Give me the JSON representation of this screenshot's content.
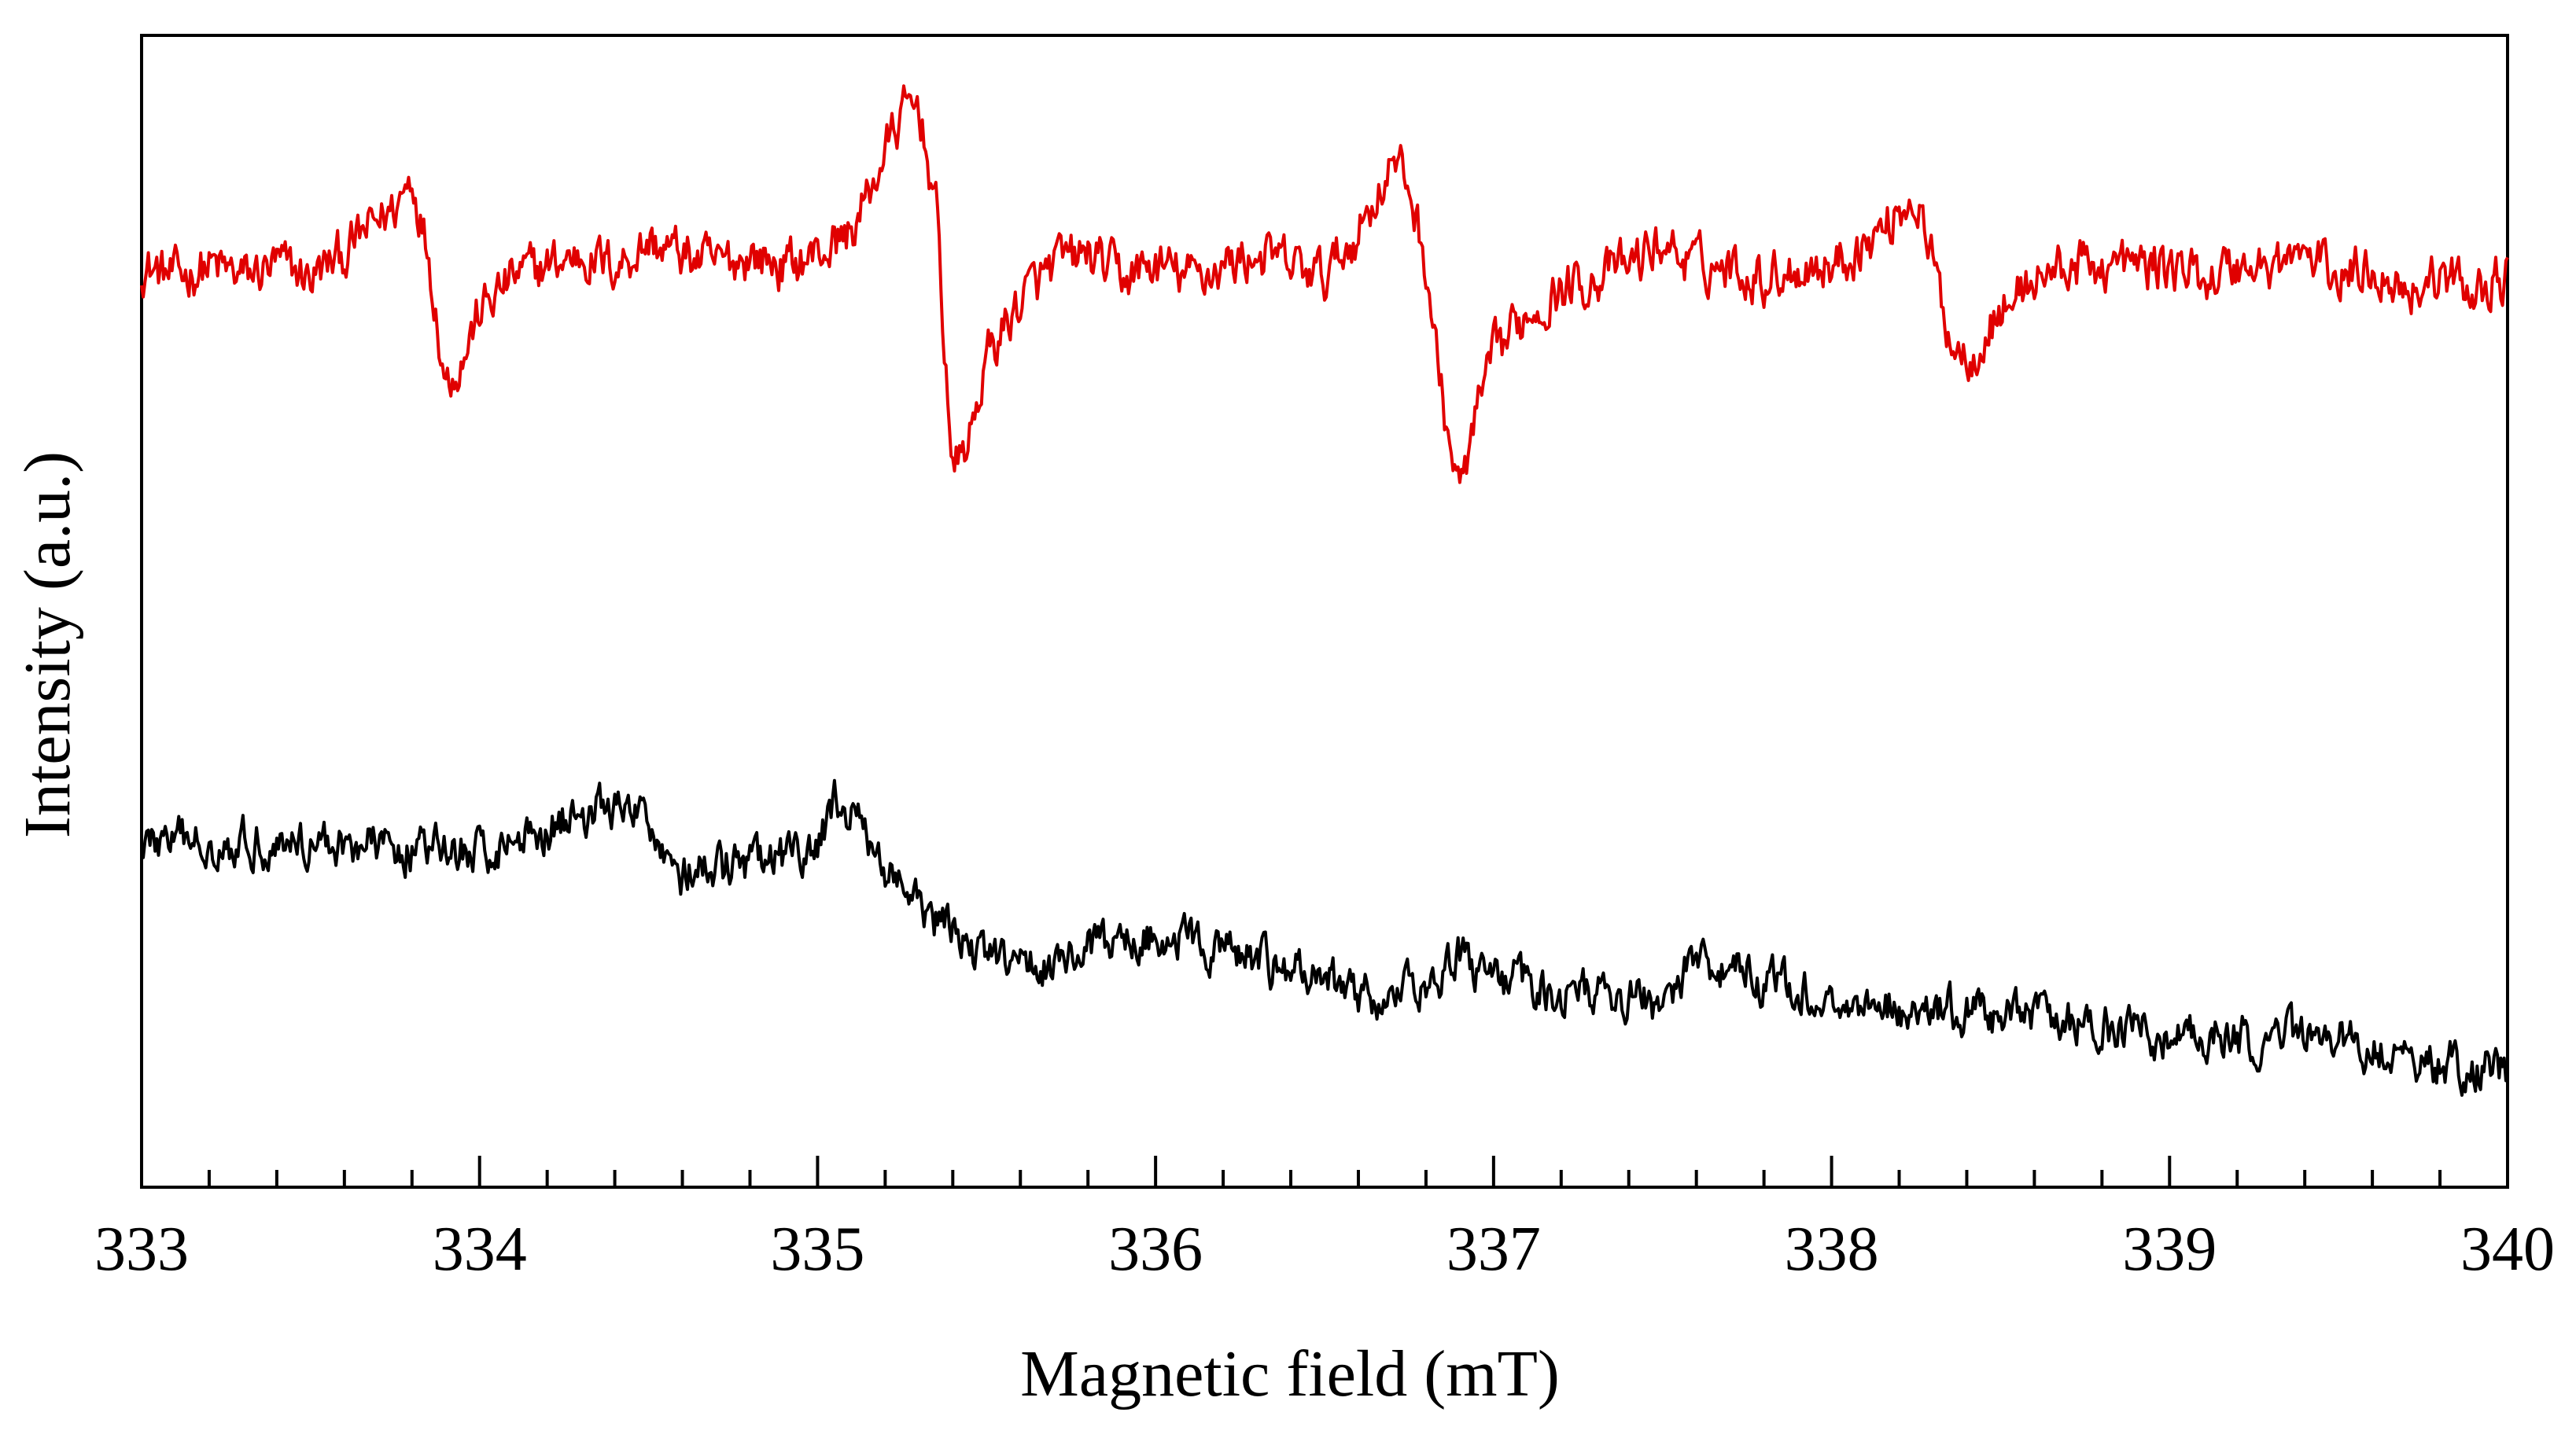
{
  "chart_data": {
    "type": "line",
    "title": "",
    "xlabel": "Magnetic field (mT)",
    "ylabel": "Intensity (a.u.)",
    "xlim": [
      333,
      340
    ],
    "ylim": [
      0,
      1
    ],
    "x_major_ticks": [
      333,
      334,
      335,
      336,
      337,
      338,
      339,
      340
    ],
    "x_tick_labels": [
      "333",
      "334",
      "335",
      "336",
      "337",
      "338",
      "339",
      "340"
    ],
    "x_minor_step": 0.2,
    "y_ticks_shown": false,
    "grid": false,
    "legend": "none",
    "series": [
      {
        "name": "upper spectrum (red)",
        "color": "#e00000",
        "x": [
          333.0,
          333.1,
          333.2,
          333.3,
          333.4,
          333.5,
          333.6,
          333.7,
          333.75,
          333.8,
          333.85,
          333.9,
          333.95,
          334.0,
          334.1,
          334.2,
          334.3,
          334.4,
          334.5,
          334.6,
          334.7,
          334.8,
          334.9,
          335.0,
          335.1,
          335.15,
          335.2,
          335.25,
          335.3,
          335.35,
          335.4,
          335.45,
          335.5,
          335.6,
          335.7,
          335.8,
          335.9,
          336.0,
          336.1,
          336.2,
          336.3,
          336.4,
          336.5,
          336.6,
          336.65,
          336.7,
          336.75,
          336.8,
          336.85,
          336.9,
          336.95,
          337.0,
          337.1,
          337.2,
          337.3,
          337.4,
          337.5,
          337.6,
          337.7,
          337.8,
          337.9,
          338.0,
          338.1,
          338.15,
          338.2,
          338.25,
          338.3,
          338.35,
          338.4,
          338.5,
          338.6,
          338.7,
          338.8,
          338.9,
          339.0,
          339.1,
          339.2,
          339.3,
          339.4,
          339.5,
          339.6,
          339.7,
          339.8,
          339.9,
          340.0
        ],
        "y": [
          0.8,
          0.79,
          0.8,
          0.79,
          0.8,
          0.79,
          0.81,
          0.84,
          0.85,
          0.88,
          0.81,
          0.7,
          0.72,
          0.76,
          0.79,
          0.8,
          0.81,
          0.8,
          0.82,
          0.81,
          0.8,
          0.81,
          0.8,
          0.81,
          0.83,
          0.86,
          0.9,
          0.93,
          0.94,
          0.85,
          0.62,
          0.65,
          0.72,
          0.77,
          0.8,
          0.81,
          0.79,
          0.8,
          0.79,
          0.8,
          0.81,
          0.8,
          0.79,
          0.83,
          0.86,
          0.89,
          0.87,
          0.8,
          0.68,
          0.6,
          0.67,
          0.72,
          0.76,
          0.78,
          0.79,
          0.8,
          0.82,
          0.8,
          0.8,
          0.79,
          0.8,
          0.8,
          0.82,
          0.83,
          0.85,
          0.86,
          0.8,
          0.74,
          0.72,
          0.76,
          0.79,
          0.8,
          0.8,
          0.8,
          0.8,
          0.79,
          0.8,
          0.8,
          0.81,
          0.79,
          0.8,
          0.78,
          0.79,
          0.78,
          0.79
        ],
        "noise_amplitude": 0.022
      },
      {
        "name": "lower spectrum (black)",
        "color": "#000000",
        "x": [
          333.0,
          333.5,
          334.0,
          334.35,
          334.5,
          334.6,
          335.0,
          335.05,
          335.3,
          335.5,
          335.6,
          336.0,
          336.5,
          336.7,
          336.9,
          337.0,
          337.5,
          337.6,
          338.0,
          338.5,
          339.0,
          339.5,
          339.7,
          340.0
        ],
        "y": [
          0.3,
          0.3,
          0.29,
          0.33,
          0.32,
          0.27,
          0.29,
          0.34,
          0.24,
          0.2,
          0.19,
          0.22,
          0.18,
          0.16,
          0.2,
          0.18,
          0.16,
          0.2,
          0.16,
          0.15,
          0.13,
          0.13,
          0.11,
          0.1
        ],
        "noise_amplitude": 0.02
      }
    ]
  }
}
